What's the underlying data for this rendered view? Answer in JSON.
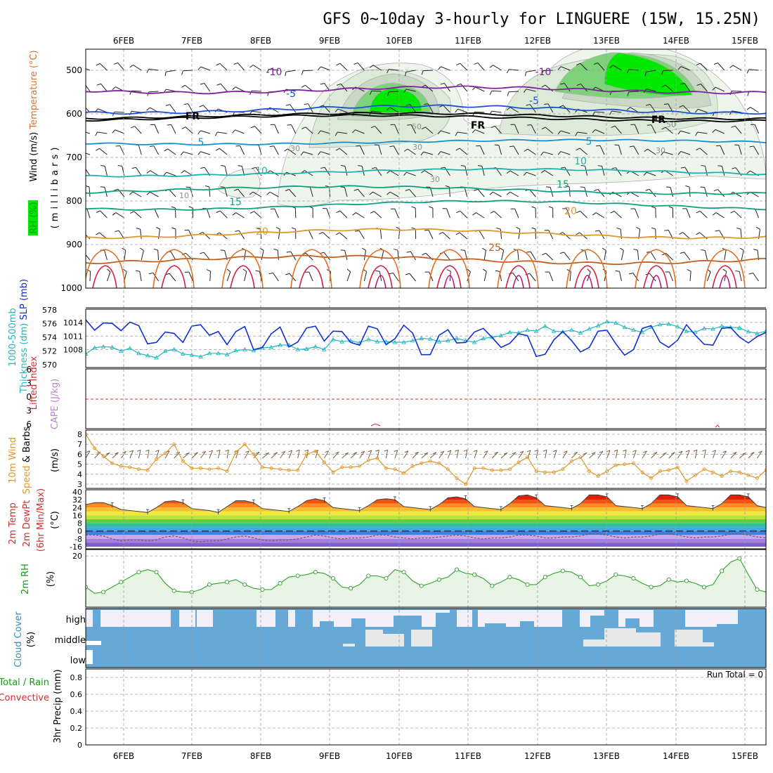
{
  "title": "GFS 0~10day 3-hourly for LINGUERE (15W, 15.25N)",
  "dates": [
    "6FEB",
    "7FEB",
    "8FEB",
    "9FEB",
    "10FEB",
    "11FEB",
    "12FEB",
    "13FEB",
    "14FEB",
    "15FEB"
  ],
  "run_total": "Run Total = 0",
  "colors": {
    "frame": "#000000",
    "grid": "#a0a0a0",
    "slp": "#1030d0",
    "thickness": "#20b8c0",
    "wind_speed": "#e0982a",
    "wind_barb": "#7a6040",
    "rh_line": "#30a030",
    "rh_fill": "#e8f4e4",
    "cloud": "#66a8d6",
    "cloud_clear": "#f2f0f6",
    "cloud_gray": "#e8e8e8",
    "rh_green": "#00e800",
    "lifted_zero": "#d03030"
  },
  "panel_labels": {
    "upper": [
      {
        "text": "Wind (m/s)",
        "color": "#000000"
      },
      {
        "text": "Temperature (°C)",
        "color": "#e07030"
      },
      {
        "text": "RH (%)",
        "color": "#10a010"
      },
      {
        "text": "(millibars)",
        "color": "#000000"
      }
    ],
    "slp": [
      {
        "text": "1000-500mb",
        "color": "#20b8c0"
      },
      {
        "text": "Thickness (dm)",
        "color": "#20b8c0"
      },
      {
        "text": "SLP (mb)",
        "color": "#1030d0"
      }
    ],
    "cape": [
      {
        "text": "Lifted Index",
        "color": "#d03030"
      },
      {
        "text": "CAPE (J/kg)",
        "color": "#c080d0"
      }
    ],
    "wind10": [
      {
        "text": "10m Wind",
        "color": "#e0982a"
      },
      {
        "text": "Speed",
        "color": "#e0982a"
      },
      {
        "text": "& Barbs",
        "color": "#000000"
      },
      {
        "text": "(m/s)",
        "color": "#000000"
      }
    ],
    "temp": [
      {
        "text": "2m Temp",
        "color": "#d03030"
      },
      {
        "text": "2m DewPt",
        "color": "#d03030"
      },
      {
        "text": "(6hr Min/Max)",
        "color": "#d03030"
      },
      {
        "text": "(°C)",
        "color": "#000000"
      }
    ],
    "rh2m": [
      {
        "text": "2m RH",
        "color": "#10a010"
      },
      {
        "text": "(%)",
        "color": "#000000"
      }
    ],
    "cloud": [
      {
        "text": "Cloud Cover",
        "color": "#3090c0"
      },
      {
        "text": "(%)",
        "color": "#000000"
      }
    ],
    "precip": [
      {
        "text": "Total / Rain",
        "color": "#10a010"
      },
      {
        "text": "Convective",
        "color": "#d03030"
      },
      {
        "text": "3hr Precip (mm)",
        "color": "#000000"
      }
    ]
  },
  "upper_ticks": [
    "500",
    "600",
    "700",
    "800",
    "900",
    "1000"
  ],
  "contour_labels": [
    {
      "text": "-10",
      "color": "#8020a0"
    },
    {
      "text": "-10",
      "color": "#8020a0"
    },
    {
      "text": "-5",
      "color": "#2050d0"
    },
    {
      "text": "-5",
      "color": "#2050d0"
    },
    {
      "text": "FR",
      "color": "#000000"
    },
    {
      "text": "FR",
      "color": "#000000"
    },
    {
      "text": "FR",
      "color": "#000000"
    },
    {
      "text": "5",
      "color": "#1890d0"
    },
    {
      "text": "5",
      "color": "#1890d0"
    },
    {
      "text": "10",
      "color": "#20b0b0"
    },
    {
      "text": "10",
      "color": "#20b0b0"
    },
    {
      "text": "15",
      "color": "#10a080"
    },
    {
      "text": "15",
      "color": "#10a080"
    },
    {
      "text": "20",
      "color": "#e0982a"
    },
    {
      "text": "20",
      "color": "#e0982a"
    },
    {
      "text": "25",
      "color": "#c06020"
    },
    {
      "text": "10",
      "color": "#909090"
    },
    {
      "text": "30",
      "color": "#909090"
    },
    {
      "text": "30",
      "color": "#909090"
    },
    {
      "text": "30",
      "color": "#909090"
    },
    {
      "text": "30",
      "color": "#909090"
    },
    {
      "text": "50",
      "color": "#909090"
    },
    {
      "text": "50",
      "color": "#909090"
    }
  ],
  "slp_ticks_left": [
    "578",
    "576",
    "574",
    "572",
    "570"
  ],
  "slp_ticks_right": [
    "1014",
    "1011",
    "1008"
  ],
  "cape_ticks": [
    "6",
    "3",
    "0",
    "3",
    "6"
  ],
  "wind_ticks": [
    "8",
    "7",
    "6",
    "5",
    "4",
    "3"
  ],
  "temp_ticks": [
    "40",
    "32",
    "24",
    "16",
    "8",
    "0",
    "-8",
    "-16"
  ],
  "rh_ticks": [
    "20"
  ],
  "cloud_levels": [
    "high",
    "middle",
    "low"
  ],
  "precip_ticks": [
    "0.8",
    "0.6",
    "0.4",
    "0.2",
    "0"
  ],
  "chart_data": [
    {
      "type": "line",
      "panel": "SLP and 1000-500mb thickness",
      "ylabel": "SLP (mb)",
      "ylim": [
        1005,
        1016
      ],
      "series": [
        {
          "name": "SLP (mb)",
          "values": [
            1014.6,
            1012.3,
            1013.9,
            1013.8,
            1012.2,
            1014.1,
            1013.3,
            1009.3,
            1009.6,
            1011.9,
            1011.6,
            1009.6,
            1013.2,
            1013.5,
            1011.2,
            1012.0,
            1009.1,
            1012.0,
            1013.1,
            1008.0,
            1008.5,
            1011.5,
            1013.0,
            1008.6,
            1009.7,
            1012.8,
            1013.2,
            1009.9,
            1012.1,
            1012.0,
            1009.6,
            1009.0,
            1013.2,
            1012.6,
            1009.1,
            1010.4,
            1013.4,
            1011.7,
            1006.9,
            1006.9,
            1011.2,
            1012.4,
            1009.5,
            1009.6,
            1011.9,
            1012.7,
            1010.7,
            1008.5,
            1009.4,
            1011.5,
            1011.1,
            1006.5,
            1007.0,
            1010.2,
            1012.0,
            1010.0,
            1007.5,
            1008.5,
            1012.1,
            1012.3,
            1009.3,
            1006.8,
            1008.0,
            1012.7,
            1013.3,
            1009.7,
            1008.5,
            1010.1,
            1013.5,
            1011.2,
            1009.2,
            1009.0,
            1012.7,
            1012.9,
            1010.8,
            1009.5,
            1010.9,
            1011.8
          ]
        },
        {
          "name": "1000-500mb Thickness (dm)",
          "values": [
            571.2,
            572.3,
            572.5,
            572.4,
            571.7,
            572.2,
            571.3,
            570.9,
            570.5,
            571.7,
            572.0,
            571.2,
            571.0,
            570.7,
            571.3,
            571.3,
            571.1,
            571.8,
            572.0,
            571.8,
            572.3,
            572.4,
            572.8,
            572.8,
            572.0,
            572.1,
            572.5,
            572.0,
            573.8,
            573.4,
            573.6,
            573.2,
            573.8,
            573.4,
            573.4,
            573.3,
            573.3,
            573.6,
            574.0,
            573.9,
            573.4,
            573.6,
            574.0,
            573.6,
            573.3,
            574.0,
            574.2,
            574.5,
            575.1,
            575.0,
            575.5,
            575.3,
            576.2,
            575.3,
            575.2,
            575.5,
            575.0,
            575.7,
            576.3,
            577.0,
            576.8,
            576.0,
            575.5,
            575.1,
            576.0,
            576.5,
            576.6,
            576.1,
            575.3,
            575.1,
            575.8,
            575.7,
            576.2,
            576.0,
            575.9,
            575.2,
            574.9,
            575.3
          ]
        }
      ]
    },
    {
      "type": "line",
      "panel": "10m Wind Speed",
      "ylabel": "10m Wind Speed (m/s)",
      "ylim": [
        2.6,
        8.4
      ],
      "series": [
        {
          "name": "10m Wind Speed (m/s)",
          "values": [
            8.0,
            6.6,
            5.8,
            5.1,
            4.8,
            4.7,
            4.5,
            4.4,
            5.5,
            6.1,
            7.0,
            5.3,
            4.6,
            4.6,
            4.5,
            4.6,
            4.3,
            6.2,
            7.0,
            6.0,
            4.7,
            4.6,
            4.5,
            4.4,
            4.4,
            6.0,
            6.3,
            5.2,
            4.2,
            4.7,
            4.7,
            4.8,
            5.4,
            5.6,
            4.6,
            4.5,
            4.1,
            4.8,
            5.1,
            5.3,
            5.1,
            4.5,
            3.6,
            3.0,
            4.6,
            4.6,
            4.4,
            4.4,
            4.5,
            5.2,
            5.7,
            4.3,
            4.2,
            4.2,
            4.5,
            5.3,
            5.7,
            4.3,
            3.8,
            4.3,
            4.9,
            5.0,
            5.1,
            4.2,
            3.6,
            4.3,
            4.4,
            4.7,
            3.3,
            3.9,
            4.5,
            4.2,
            3.8,
            4.3,
            4.2,
            3.9,
            3.6,
            4.4
          ]
        }
      ]
    },
    {
      "type": "line",
      "panel": "2m Temp and DewPt",
      "ylabel": "(°C)",
      "ylim": [
        -16,
        40
      ],
      "series": [
        {
          "name": "2m Temp",
          "values": [
            27,
            29,
            29,
            26,
            22,
            21,
            20,
            19,
            24,
            30,
            31,
            29,
            23,
            22,
            21,
            19,
            25,
            31,
            31,
            29,
            23,
            22,
            21,
            20,
            25,
            31,
            33,
            31,
            24,
            23,
            22,
            21,
            26,
            32,
            33,
            32,
            25,
            24,
            23,
            22,
            27,
            34,
            35,
            33,
            25,
            24,
            23,
            22,
            28,
            36,
            37,
            34,
            26,
            25,
            24,
            23,
            28,
            37,
            37,
            35,
            26,
            25,
            24,
            23,
            28,
            37,
            37,
            35,
            26,
            25,
            24,
            23,
            28,
            37,
            37,
            35,
            26,
            24
          ]
        },
        {
          "name": "2m DewPt",
          "values": [
            -4,
            -4,
            -5,
            -8,
            -10,
            -9,
            -9,
            -10,
            -9,
            -6,
            -5,
            -7,
            -10,
            -11,
            -10,
            -10,
            -8,
            -6,
            -5,
            -7,
            -9,
            -10,
            -9,
            -9,
            -8,
            -6,
            -4,
            -5,
            -7,
            -8,
            -7,
            -7,
            -6,
            -4,
            -4,
            -6,
            -7,
            -8,
            -7,
            -7,
            -6,
            -5,
            -4,
            -5,
            -7,
            -8,
            -7,
            -7,
            -6,
            -4,
            -4,
            -5,
            -7,
            -7,
            -6,
            -6,
            -5,
            -3,
            -3,
            -4,
            -6,
            -7,
            -6,
            -6,
            -5,
            -3,
            -3,
            -4,
            -6,
            -7,
            -6,
            -6,
            -5,
            -3,
            -3,
            -4,
            -6,
            -7
          ]
        }
      ]
    },
    {
      "type": "line",
      "panel": "2m RH",
      "ylabel": "(%)",
      "ylim": [
        0,
        22
      ],
      "series": [
        {
          "name": "2m RH (%)",
          "values": [
            7.5,
            5.0,
            5.5,
            7.5,
            9.5,
            11.5,
            13.5,
            14.5,
            13.5,
            9.0,
            6.0,
            5.5,
            5.5,
            6.5,
            8.5,
            9.0,
            9.5,
            10.5,
            8.5,
            7.0,
            6.5,
            6.5,
            9.0,
            11.5,
            12.0,
            12.5,
            13.5,
            13.0,
            11.0,
            7.5,
            7.0,
            8.5,
            12.0,
            12.0,
            11.0,
            14.5,
            13.5,
            10.0,
            8.0,
            9.0,
            10.5,
            11.5,
            14.5,
            13.0,
            12.5,
            11.0,
            8.0,
            9.5,
            11.5,
            10.5,
            8.5,
            8.5,
            11.5,
            13.0,
            14.0,
            13.5,
            11.5,
            8.0,
            8.5,
            10.0,
            12.5,
            12.0,
            11.0,
            9.0,
            7.5,
            8.0,
            10.5,
            9.5,
            10.0,
            9.0,
            7.5,
            8.5,
            14.0,
            17.5,
            19.0,
            12.5,
            6.5,
            5.5
          ]
        }
      ]
    },
    {
      "type": "line",
      "panel": "3hr Precip",
      "ylabel": "3hr Precip (mm)",
      "ylim": [
        0,
        0.9
      ],
      "series": []
    }
  ]
}
